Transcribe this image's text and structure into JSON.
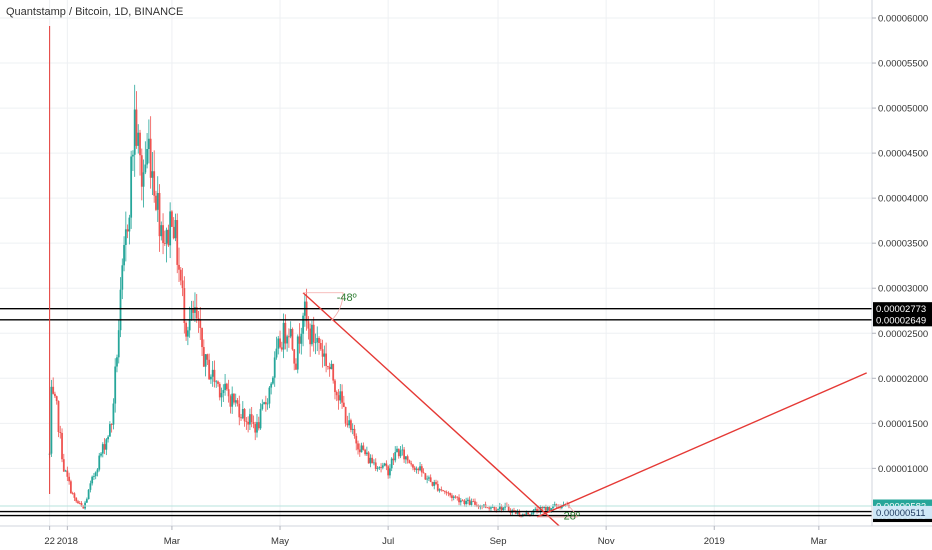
{
  "header": {
    "title": "Quantstamp / Bitcoin, 1D, BINANCE"
  },
  "colors": {
    "up": "#26a69a",
    "down": "#ef5350",
    "trend": "#e53935",
    "level": "#000000",
    "grid": "#eef0f3",
    "angle_text": "#2e7d32"
  },
  "chart_data": {
    "type": "candlestick",
    "title": "Quantstamp / Bitcoin, 1D, BINANCE",
    "xlim": [
      "2017-11-24",
      "2019-03-31"
    ],
    "ylim": [
      3.6e-06,
      6.2e-05
    ],
    "grid": true,
    "x_ticks": [
      {
        "date": "2017-12-22",
        "label": "22"
      },
      {
        "date": "2018-01-01",
        "label": "2018"
      },
      {
        "date": "2018-03-01",
        "label": "Mar"
      },
      {
        "date": "2018-05-01",
        "label": "May"
      },
      {
        "date": "2018-07-01",
        "label": "Jul"
      },
      {
        "date": "2018-09-01",
        "label": "Sep"
      },
      {
        "date": "2018-11-01",
        "label": "Nov"
      },
      {
        "date": "2019-01-01",
        "label": "2019"
      },
      {
        "date": "2019-03-01",
        "label": "Mar"
      }
    ],
    "y_ticks": [
      "0.00006000",
      "0.00005500",
      "0.00005000",
      "0.00004500",
      "0.00004000",
      "0.00003500",
      "0.00003000",
      "0.00002500",
      "0.00002000",
      "0.00001500",
      "0.00001000"
    ],
    "anchors": [
      [
        "2017-12-22",
        1.15e-05
      ],
      [
        "2017-12-23",
        1.8e-05
      ],
      [
        "2017-12-26",
        1.65e-05
      ],
      [
        "2017-12-30",
        1e-05
      ],
      [
        "2018-01-05",
        6.5e-06
      ],
      [
        "2018-01-10",
        5.5e-06
      ],
      [
        "2018-01-18",
        1.05e-05
      ],
      [
        "2018-01-26",
        1.5e-05
      ],
      [
        "2018-02-01",
        3.1e-05
      ],
      [
        "2018-02-05",
        4e-05
      ],
      [
        "2018-02-08",
        4.9e-05
      ],
      [
        "2018-02-12",
        4.2e-05
      ],
      [
        "2018-02-16",
        4.6e-05
      ],
      [
        "2018-02-22",
        3.8e-05
      ],
      [
        "2018-02-26",
        3.5e-05
      ],
      [
        "2018-03-01",
        3.9e-05
      ],
      [
        "2018-03-05",
        3.2e-05
      ],
      [
        "2018-03-09",
        2.6e-05
      ],
      [
        "2018-03-14",
        2.7e-05
      ],
      [
        "2018-03-20",
        2.15e-05
      ],
      [
        "2018-03-28",
        1.9e-05
      ],
      [
        "2018-04-05",
        1.75e-05
      ],
      [
        "2018-04-12",
        1.55e-05
      ],
      [
        "2018-04-18",
        1.45e-05
      ],
      [
        "2018-04-24",
        1.8e-05
      ],
      [
        "2018-05-01",
        2.4e-05
      ],
      [
        "2018-05-06",
        2.6e-05
      ],
      [
        "2018-05-10",
        2.2e-05
      ],
      [
        "2018-05-14",
        2.8e-05
      ],
      [
        "2018-05-17",
        2.5e-05
      ],
      [
        "2018-05-23",
        2.4e-05
      ],
      [
        "2018-06-01",
        1.95e-05
      ],
      [
        "2018-06-10",
        1.4e-05
      ],
      [
        "2018-06-20",
        1.1e-05
      ],
      [
        "2018-07-01",
        9.8e-06
      ],
      [
        "2018-07-06",
        1.2e-05
      ],
      [
        "2018-07-15",
        1.05e-05
      ],
      [
        "2018-07-25",
        8.5e-06
      ],
      [
        "2018-08-05",
        7e-06
      ],
      [
        "2018-08-15",
        6.2e-06
      ],
      [
        "2018-08-25",
        5.8e-06
      ],
      [
        "2018-09-05",
        5.6e-06
      ],
      [
        "2018-09-15",
        4.8e-06
      ],
      [
        "2018-09-22",
        5.3e-06
      ],
      [
        "2018-10-05",
        5.8e-06
      ],
      [
        "2018-10-12",
        5.8e-06
      ]
    ],
    "horizontal_levels": [
      {
        "price": 2.773e-05,
        "label": "0.00002773"
      },
      {
        "price": 2.649e-05,
        "label": "0.00002649"
      },
      {
        "price": 5.2e-06,
        "label": "0.00000520"
      },
      {
        "price": 4.76e-06,
        "label": "0.00000476"
      }
    ],
    "price_tags": [
      {
        "price": 5.82e-06,
        "label": "0.00000582",
        "style": "green"
      },
      {
        "price": 5.11e-06,
        "label": "0.00000511",
        "style": "blue"
      }
    ],
    "vertical_marker": {
      "date": "2017-12-22"
    },
    "trendlines": [
      {
        "from": [
          "2018-05-14",
          2.95e-05
        ],
        "to": [
          "2018-10-10",
          2.8e-06
        ]
      },
      {
        "from": [
          "2018-09-23",
          4.6e-06
        ],
        "to": [
          "2019-03-28",
          2.06e-05
        ]
      }
    ],
    "angle_annotations": [
      {
        "label": "-48º",
        "at": [
          "2018-06-02",
          2.86e-05
        ]
      },
      {
        "label": "28º",
        "at": [
          "2018-10-08",
          4.3e-06
        ]
      }
    ]
  }
}
